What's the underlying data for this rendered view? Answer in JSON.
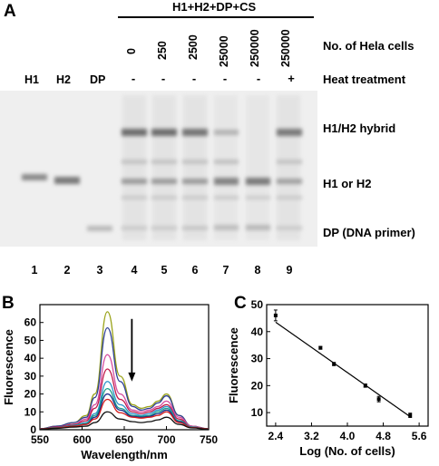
{
  "panel_a": {
    "letter": "A",
    "group_label": "H1+H2+DP+CS",
    "row_label_cells": "No. of Hela cells",
    "row_label_heat": "Heat treatment",
    "lane_heads": [
      "H1",
      "H2",
      "DP"
    ],
    "cell_counts": [
      "0",
      "250",
      "2500",
      "25000",
      "250000",
      "250000"
    ],
    "heat_marks": [
      "-",
      "-",
      "-",
      "-",
      "-",
      "+"
    ],
    "lane_numbers": [
      "1",
      "2",
      "3",
      "4",
      "5",
      "6",
      "7",
      "8",
      "9"
    ],
    "band_labels": {
      "hybrid": "H1/H2 hybrid",
      "single": "H1 or H2",
      "primer": "DP (DNA primer)"
    }
  },
  "panel_b": {
    "letter": "B",
    "chart_data": {
      "type": "line",
      "xlabel": "Wavelength/nm",
      "ylabel": "Fluorescence",
      "xlim": [
        550,
        750
      ],
      "ylim": [
        0,
        70
      ],
      "xticks": [
        550,
        600,
        650,
        700,
        750
      ],
      "yticks": [
        0,
        10,
        20,
        30,
        40,
        50,
        60
      ],
      "series": [
        {
          "color": "#9aa31a",
          "values": [
            0.5,
            2,
            4,
            8,
            20,
            66,
            30,
            14,
            12,
            13,
            16,
            20,
            8,
            2,
            0.5
          ]
        },
        {
          "color": "#2e3f96",
          "values": [
            0.5,
            2,
            4,
            7,
            18,
            57,
            27,
            13,
            11,
            12,
            15,
            19,
            8,
            2,
            0.5
          ]
        },
        {
          "color": "#d54fa0",
          "values": [
            0.5,
            1.5,
            3,
            6,
            14,
            42,
            20,
            11,
            10,
            11,
            13,
            16,
            7,
            2,
            0.5
          ]
        },
        {
          "color": "#c0184a",
          "values": [
            0.5,
            1.5,
            3,
            5,
            12,
            34,
            17,
            10,
            9,
            10,
            12,
            14,
            6,
            1.5,
            0.5
          ]
        },
        {
          "color": "#2b92c9",
          "values": [
            0.5,
            1.2,
            2.5,
            4,
            9,
            27,
            14,
            9,
            8,
            9,
            11,
            13,
            5,
            1.5,
            0.5
          ]
        },
        {
          "color": "#1a9f8a",
          "values": [
            0.5,
            1.2,
            2.2,
            3.5,
            8,
            23,
            12,
            8,
            7.5,
            8,
            10,
            12,
            5,
            1.5,
            0.5
          ]
        },
        {
          "color": "#1b2e8a",
          "values": [
            0.5,
            1,
            2,
            3,
            7,
            20,
            11,
            7.5,
            7,
            7.5,
            9,
            11,
            4.5,
            1.2,
            0.5
          ]
        },
        {
          "color": "#d41c1c",
          "values": [
            0.5,
            1,
            2,
            3,
            6,
            17,
            9.5,
            7,
            6.5,
            7,
            8,
            10,
            4,
            1.2,
            0.5
          ]
        },
        {
          "color": "#111111",
          "values": [
            0.3,
            0.8,
            1.5,
            2,
            4,
            10,
            6,
            4.5,
            4,
            4.5,
            5.5,
            7,
            3,
            1,
            0.3
          ]
        }
      ],
      "x": [
        550,
        570,
        590,
        605,
        615,
        630,
        645,
        660,
        670,
        680,
        690,
        700,
        715,
        730,
        750
      ]
    }
  },
  "panel_c": {
    "letter": "C",
    "chart_data": {
      "type": "scatter",
      "xlabel": "Log (No. of cells)",
      "ylabel": "Fluorescence",
      "xlim": [
        2.2,
        5.8
      ],
      "ylim": [
        5,
        50
      ],
      "xticks": [
        "2.4",
        "3.2",
        "4.0",
        "4.8",
        "5.6"
      ],
      "yticks": [
        "10",
        "20",
        "30",
        "40",
        "50"
      ],
      "x": [
        2.4,
        3.4,
        3.7,
        4.4,
        4.7,
        5.4
      ],
      "y": [
        46,
        34,
        28,
        20,
        15,
        9
      ],
      "yerr": [
        2.0,
        0.5,
        0.6,
        0.6,
        1.0,
        0.8
      ],
      "fit_line": {
        "x": [
          2.4,
          5.4
        ],
        "y": [
          43.5,
          8.5
        ]
      }
    }
  }
}
